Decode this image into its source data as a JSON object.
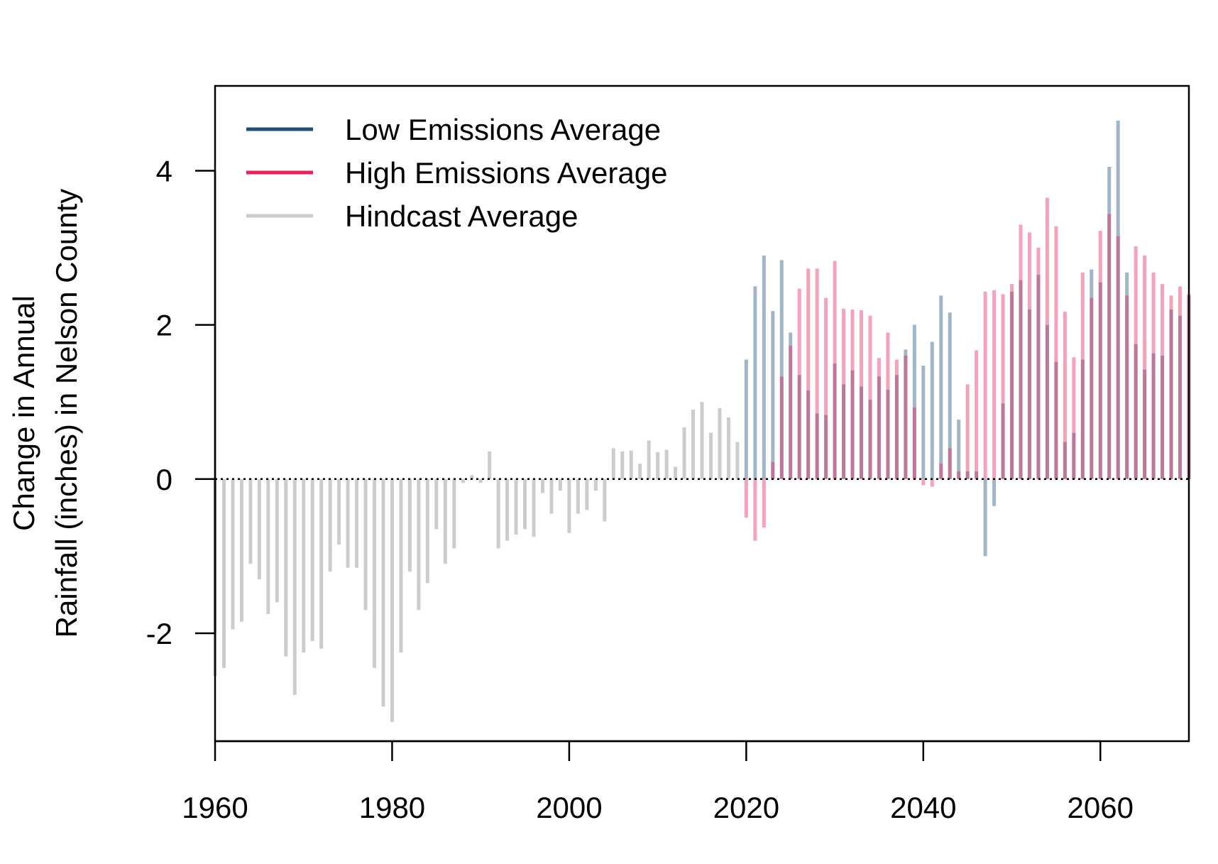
{
  "chart_data": {
    "type": "bar",
    "title": "",
    "xlabel": "",
    "ylabel_line1": "Change in Annual",
    "ylabel_line2": "Rainfall (inches) in Nelson County",
    "xlim": [
      1960,
      2070
    ],
    "ylim": [
      -3.4,
      5.1
    ],
    "x_ticks": [
      "1960",
      "1980",
      "2000",
      "2020",
      "2040",
      "2060"
    ],
    "y_ticks": [
      "-2",
      "0",
      "2",
      "4"
    ],
    "reference_line": {
      "y": 0,
      "style": "dotted"
    },
    "legend_position": "top-left",
    "legend": [
      {
        "label": "Low Emissions Average",
        "color": "#1f4e79"
      },
      {
        "label": "High Emissions Average",
        "color": "#e8215a"
      },
      {
        "label": "Hindcast Average",
        "color": "#cccccc"
      }
    ],
    "series": [
      {
        "name": "Hindcast Average",
        "color": "#cccccc",
        "x": [
          1960,
          1961,
          1962,
          1963,
          1964,
          1965,
          1966,
          1967,
          1968,
          1969,
          1970,
          1971,
          1972,
          1973,
          1974,
          1975,
          1976,
          1977,
          1978,
          1979,
          1980,
          1981,
          1982,
          1983,
          1984,
          1985,
          1986,
          1987,
          1988,
          1989,
          1990,
          1991,
          1992,
          1993,
          1994,
          1995,
          1996,
          1997,
          1998,
          1999,
          2000,
          2001,
          2002,
          2003,
          2004,
          2005,
          2006,
          2007,
          2008,
          2009,
          2010,
          2011,
          2012,
          2013,
          2014,
          2015,
          2016,
          2017,
          2018,
          2019
        ],
        "values": [
          -2.55,
          -2.45,
          -1.95,
          -1.85,
          -1.1,
          -1.3,
          -1.75,
          -1.6,
          -2.3,
          -2.8,
          -2.25,
          -2.1,
          -2.2,
          -1.2,
          -0.85,
          -1.15,
          -1.15,
          -1.7,
          -2.45,
          -2.95,
          -3.15,
          -2.25,
          -1.2,
          -1.7,
          -1.35,
          -0.65,
          -1.1,
          -0.9,
          -0.05,
          0.05,
          -0.05,
          0.36,
          -0.9,
          -0.8,
          -0.72,
          -0.65,
          -0.75,
          -0.18,
          -0.45,
          -0.15,
          -0.7,
          -0.45,
          -0.4,
          -0.15,
          -0.55,
          0.4,
          0.36,
          0.37,
          0.2,
          0.5,
          0.35,
          0.38,
          0.16,
          0.67,
          0.9,
          1.0,
          0.6,
          0.92,
          0.8,
          0.48
        ]
      },
      {
        "name": "Low Emissions Average",
        "color": "#1f4e79",
        "x": [
          2020,
          2021,
          2022,
          2023,
          2024,
          2025,
          2026,
          2027,
          2028,
          2029,
          2030,
          2031,
          2032,
          2033,
          2034,
          2035,
          2036,
          2037,
          2038,
          2039,
          2040,
          2041,
          2042,
          2043,
          2044,
          2045,
          2046,
          2047,
          2048,
          2049,
          2050,
          2051,
          2052,
          2053,
          2054,
          2055,
          2056,
          2057,
          2058,
          2059,
          2060,
          2061,
          2062,
          2063,
          2064,
          2065,
          2066,
          2067,
          2068,
          2069,
          2070
        ],
        "values": [
          1.55,
          2.5,
          2.9,
          2.18,
          2.84,
          1.9,
          1.35,
          1.15,
          0.85,
          0.83,
          1.5,
          1.23,
          1.41,
          1.2,
          1.03,
          1.33,
          1.16,
          1.35,
          1.68,
          2.0,
          1.47,
          1.78,
          2.38,
          2.16,
          0.77,
          0.1,
          0.1,
          -1.0,
          -0.35,
          0.98,
          2.43,
          2.58,
          2.2,
          2.65,
          2.0,
          1.52,
          0.48,
          0.6,
          1.55,
          2.72,
          2.55,
          4.05,
          4.65,
          2.68,
          1.75,
          1.42,
          1.63,
          1.6,
          2.2,
          2.12,
          2.38
        ]
      },
      {
        "name": "High Emissions Average",
        "color": "#e8215a",
        "x": [
          2020,
          2021,
          2022,
          2023,
          2024,
          2025,
          2026,
          2027,
          2028,
          2029,
          2030,
          2031,
          2032,
          2033,
          2034,
          2035,
          2036,
          2037,
          2038,
          2039,
          2040,
          2041,
          2042,
          2043,
          2044,
          2045,
          2046,
          2047,
          2048,
          2049,
          2050,
          2051,
          2052,
          2053,
          2054,
          2055,
          2056,
          2057,
          2058,
          2059,
          2060,
          2061,
          2062,
          2063,
          2064,
          2065,
          2066,
          2067,
          2068,
          2069,
          2070
        ],
        "values": [
          -0.5,
          -0.8,
          -0.63,
          0.22,
          1.33,
          1.73,
          2.47,
          2.73,
          2.73,
          2.35,
          2.83,
          2.21,
          2.2,
          2.19,
          2.12,
          1.57,
          1.9,
          1.55,
          1.6,
          0.93,
          -0.08,
          -0.1,
          0.2,
          0.4,
          0.1,
          1.23,
          1.67,
          2.43,
          2.45,
          2.4,
          2.53,
          3.3,
          3.2,
          3.0,
          3.65,
          3.28,
          2.17,
          1.58,
          2.68,
          2.35,
          3.22,
          3.44,
          3.15,
          2.38,
          3.02,
          2.9,
          2.68,
          2.53,
          2.38,
          2.5,
          2.4
        ]
      }
    ]
  }
}
